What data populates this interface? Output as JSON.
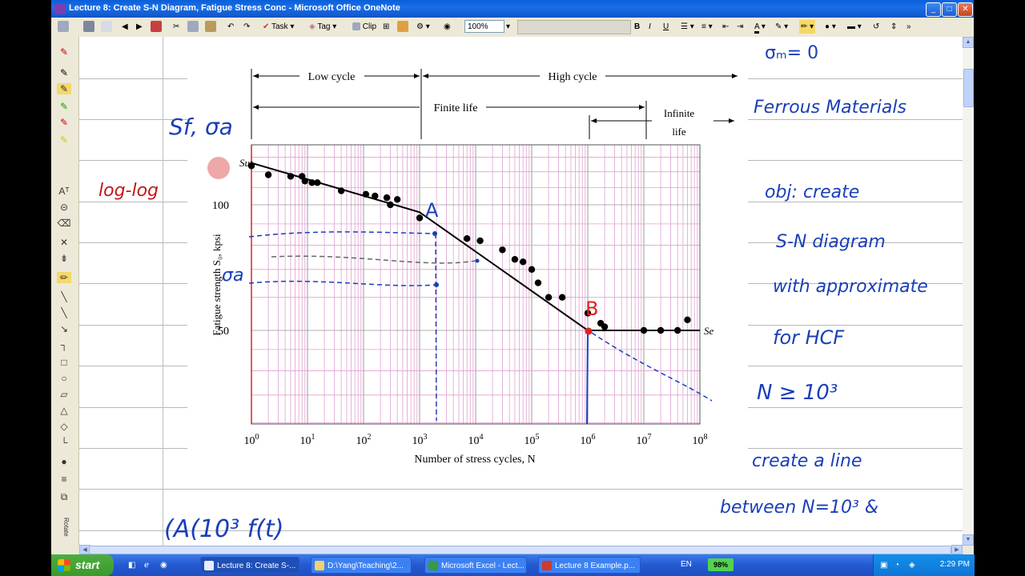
{
  "window": {
    "title": "Lecture 8: Create S-N Diagram, Fatigue Stress Conc - Microsoft Office OneNote",
    "min": "_",
    "max": "□",
    "close": "✕"
  },
  "toolbar": {
    "task_label": "Task",
    "tag_label": "Tag",
    "clip_label": "Clip",
    "zoom_value": "100%",
    "bold": "B",
    "italic": "I",
    "underline": "U"
  },
  "figure": {
    "region_low": "Low cycle",
    "region_high": "High cycle",
    "region_finite": "Finite life",
    "region_infinite_1": "Infinite",
    "region_infinite_2": "life",
    "ylabel": "Fatigue strength S₀, kpsi",
    "xlabel": "Number of stress cycles, N",
    "y_ticks": [
      "100",
      "50"
    ],
    "x_ticks": [
      "10^0",
      "10^1",
      "10^2",
      "10^3",
      "10^4",
      "10^5",
      "10^6",
      "10^7",
      "10^8"
    ],
    "label_sut": "Sut",
    "label_se": "Se",
    "point_a": "A",
    "point_b": "B"
  },
  "chart_data": {
    "type": "scatter",
    "xscale": "log",
    "xlim": [
      1,
      100000000
    ],
    "xlabel": "Number of stress cycles, N",
    "ylabel": "Fatigue strength Sf, kpsi",
    "y_ticks": [
      50,
      100
    ],
    "series": [
      {
        "points": [
          [
            1,
            124
          ],
          [
            2,
            118
          ],
          [
            5,
            117
          ],
          [
            8,
            117
          ],
          [
            9,
            114
          ],
          [
            12,
            113
          ],
          [
            15,
            113
          ],
          [
            40,
            108
          ],
          [
            110,
            106
          ],
          [
            160,
            105
          ],
          [
            260,
            104
          ],
          [
            300,
            100
          ],
          [
            400,
            103
          ],
          [
            1000,
            93
          ],
          [
            7000,
            83
          ],
          [
            12000,
            82
          ],
          [
            30000,
            78
          ],
          [
            50000,
            74
          ],
          [
            70000,
            73
          ],
          [
            100000,
            70
          ],
          [
            130000,
            65
          ],
          [
            200000,
            60
          ],
          [
            350000,
            60
          ],
          [
            1000000,
            55
          ],
          [
            1700000,
            52
          ],
          [
            2000000,
            51
          ],
          [
            10000000,
            50
          ],
          [
            20000000,
            50
          ],
          [
            40000000,
            50
          ],
          [
            60000000,
            53
          ]
        ]
      }
    ],
    "fit_line": [
      [
        1,
        126
      ],
      [
        1000,
        96
      ],
      [
        1000000,
        50
      ],
      [
        100000000,
        50
      ]
    ]
  },
  "handwriting": {
    "sigma_m": "σₘ= 0",
    "ferrous": "Ferrous Materials",
    "obj_1": "obj: create",
    "obj_2": "S-N diagram",
    "obj_3": "with approximate",
    "obj_4": "for HCF",
    "n_ge": "N ≥ 10³",
    "create_1": "create a line",
    "create_2": "between N=10³ &",
    "sf_sigma": "Sf, σa",
    "loglog": "log-log",
    "sigma_a": "σa",
    "bottom": "(A(10³ f(t)"
  },
  "taskbar": {
    "start": "start",
    "tasks": [
      {
        "label": "Lecture 8: Create S-..."
      },
      {
        "label": "D:\\Yang\\Teaching\\2..."
      },
      {
        "label": "Microsoft Excel - Lect..."
      },
      {
        "label": "Lecture 8 Example.p..."
      }
    ],
    "lang": "EN",
    "battery": "98%",
    "clock": "2:29 PM"
  }
}
